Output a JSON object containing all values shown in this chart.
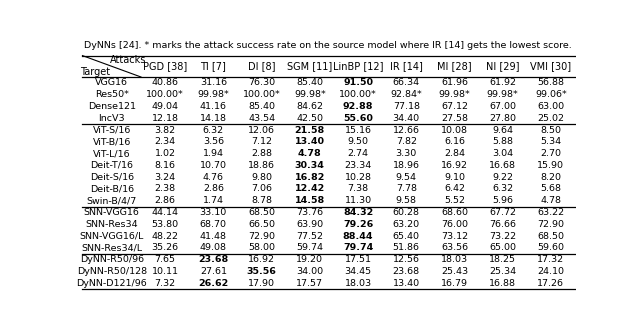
{
  "title_line": "DyNNs [24]. * marks the attack success rate on the source model where IR [14] gets the lowest score.",
  "col_headers": [
    "PGD [38]",
    "TI [7]",
    "DI [8]",
    "SGM [11]",
    "LinBP [12]",
    "IR [14]",
    "MI [28]",
    "NI [29]",
    "VMI [30]"
  ],
  "row_groups": [
    {
      "rows": [
        {
          "target": "VGG16",
          "values": [
            "40.86",
            "31.16",
            "76.30",
            "85.40",
            "91.50",
            "66.34",
            "61.96",
            "61.92",
            "56.88"
          ],
          "bold": [
            4
          ]
        },
        {
          "target": "Res50*",
          "values": [
            "100.00*",
            "99.98*",
            "100.00*",
            "99.98*",
            "100.00*",
            "92.84*",
            "99.98*",
            "99.98*",
            "99.06*"
          ],
          "bold": []
        },
        {
          "target": "Dense121",
          "values": [
            "49.04",
            "41.16",
            "85.40",
            "84.62",
            "92.88",
            "77.18",
            "67.12",
            "67.00",
            "63.00"
          ],
          "bold": [
            4
          ]
        },
        {
          "target": "IncV3",
          "values": [
            "12.18",
            "14.18",
            "43.54",
            "42.50",
            "55.60",
            "34.40",
            "27.58",
            "27.80",
            "25.02"
          ],
          "bold": [
            4
          ]
        }
      ]
    },
    {
      "rows": [
        {
          "target": "ViT-S/16",
          "values": [
            "3.82",
            "6.32",
            "12.06",
            "21.58",
            "15.16",
            "12.66",
            "10.08",
            "9.64",
            "8.50"
          ],
          "bold": [
            3
          ]
        },
        {
          "target": "ViT-B/16",
          "values": [
            "2.34",
            "3.56",
            "7.12",
            "13.40",
            "9.50",
            "7.82",
            "6.16",
            "5.88",
            "5.34"
          ],
          "bold": [
            3
          ]
        },
        {
          "target": "ViT-L/16",
          "values": [
            "1.02",
            "1.94",
            "2.88",
            "4.78",
            "2.74",
            "3.30",
            "2.84",
            "3.04",
            "2.70"
          ],
          "bold": [
            3
          ]
        },
        {
          "target": "Deit-T/16",
          "values": [
            "8.16",
            "10.70",
            "18.86",
            "30.34",
            "23.34",
            "18.96",
            "16.92",
            "16.68",
            "15.90"
          ],
          "bold": [
            3
          ]
        },
        {
          "target": "Deit-S/16",
          "values": [
            "3.24",
            "4.76",
            "9.80",
            "16.82",
            "10.28",
            "9.54",
            "9.10",
            "9.22",
            "8.20"
          ],
          "bold": [
            3
          ]
        },
        {
          "target": "Deit-B/16",
          "values": [
            "2.38",
            "2.86",
            "7.06",
            "12.42",
            "7.38",
            "7.78",
            "6.42",
            "6.32",
            "5.68"
          ],
          "bold": [
            3
          ]
        },
        {
          "target": "Swin-B/4/7",
          "values": [
            "2.86",
            "1.74",
            "8.78",
            "14.58",
            "11.30",
            "9.58",
            "5.52",
            "5.96",
            "4.78"
          ],
          "bold": [
            3
          ]
        }
      ]
    },
    {
      "rows": [
        {
          "target": "SNN-VGG16",
          "values": [
            "44.14",
            "33.10",
            "68.50",
            "73.76",
            "84.32",
            "60.28",
            "68.60",
            "67.72",
            "63.22"
          ],
          "bold": [
            4
          ]
        },
        {
          "target": "SNN-Res34",
          "values": [
            "53.80",
            "68.70",
            "66.50",
            "63.90",
            "79.26",
            "63.20",
            "76.00",
            "76.66",
            "72.90"
          ],
          "bold": [
            4
          ]
        },
        {
          "target": "SNN-VGG16/L",
          "values": [
            "48.22",
            "41.48",
            "72.90",
            "77.52",
            "88.44",
            "65.40",
            "73.12",
            "73.22",
            "68.50"
          ],
          "bold": [
            4
          ]
        },
        {
          "target": "SNN-Res34/L",
          "values": [
            "35.26",
            "49.08",
            "58.00",
            "59.74",
            "79.74",
            "51.86",
            "63.56",
            "65.00",
            "59.60"
          ],
          "bold": [
            4
          ]
        }
      ]
    },
    {
      "rows": [
        {
          "target": "DyNN-R50/96",
          "values": [
            "7.65",
            "23.68",
            "16.92",
            "19.20",
            "17.51",
            "12.56",
            "18.03",
            "18.25",
            "17.32"
          ],
          "bold": [
            1
          ]
        },
        {
          "target": "DyNN-R50/128",
          "values": [
            "10.11",
            "27.61",
            "35.56",
            "34.00",
            "34.45",
            "23.68",
            "25.43",
            "25.34",
            "24.10"
          ],
          "bold": [
            2
          ]
        },
        {
          "target": "DyNN-D121/96",
          "values": [
            "7.32",
            "26.62",
            "17.90",
            "17.57",
            "18.03",
            "13.40",
            "16.79",
            "16.88",
            "17.26"
          ],
          "bold": [
            1
          ]
        }
      ]
    }
  ],
  "bg_color": "#f0f0f0",
  "title_fontsize": 6.8,
  "header_fontsize": 7.0,
  "data_fontsize": 6.8,
  "label_fontsize": 6.8
}
